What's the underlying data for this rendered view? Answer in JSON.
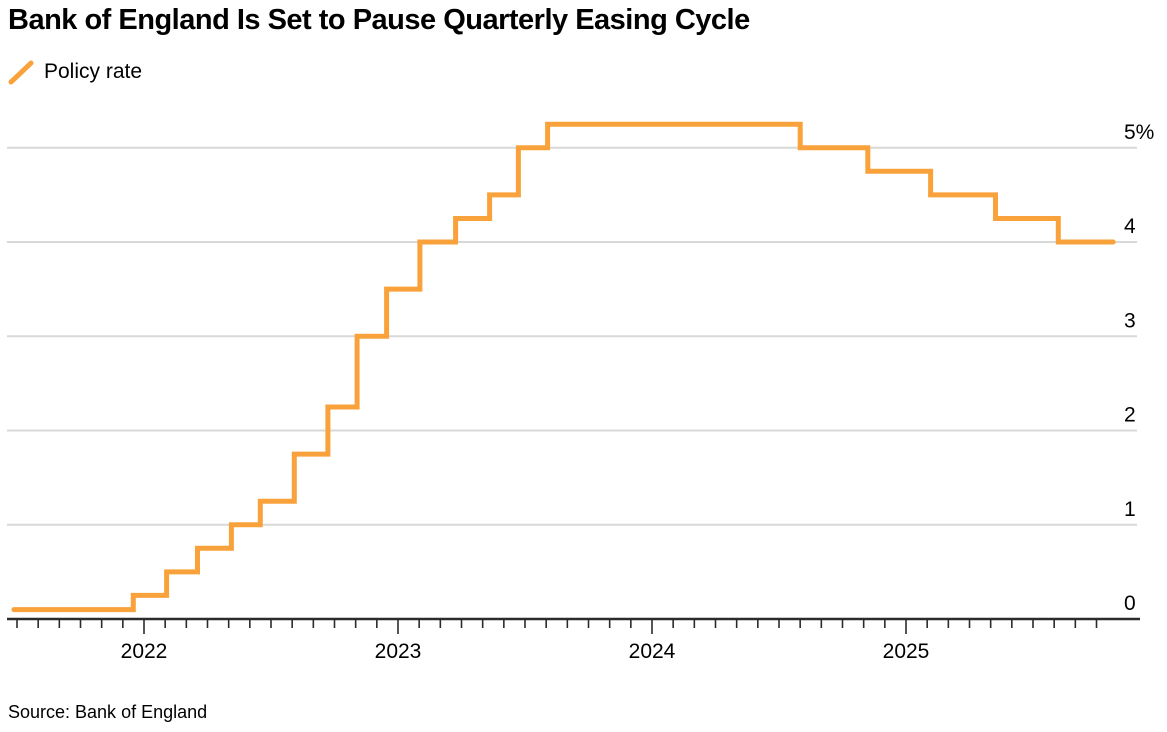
{
  "title": "Bank of England Is Set to Pause Quarterly Easing Cycle",
  "legend": {
    "label": "Policy rate"
  },
  "source": "Source: Bank of England",
  "colors": {
    "line": "#F9A23C",
    "grid": "#D8D8D8",
    "axis": "#2B2B2B",
    "text": "#000000"
  },
  "chart_data": {
    "type": "line",
    "subtype": "step",
    "title": "Bank of England Is Set to Pause Quarterly Easing Cycle",
    "ylabel": "Policy rate (%)",
    "y_axis": {
      "position": "right",
      "ticks": [
        0,
        1,
        2,
        3,
        4,
        5
      ],
      "tick_labels": [
        "0",
        "1",
        "2",
        "3",
        "4",
        "5%"
      ],
      "min": 0,
      "max": 5.25,
      "grid": true
    },
    "x_axis": {
      "start": "2021-06-27",
      "end": "2025-10-25",
      "year_ticks": [
        "2022",
        "2023",
        "2024",
        "2025"
      ],
      "minor_tick_interval": "month"
    },
    "series": [
      {
        "name": "Policy rate",
        "unit": "%",
        "steps": [
          {
            "date": "2021-06-27",
            "rate": 0.1
          },
          {
            "date": "2021-12-16",
            "rate": 0.25
          },
          {
            "date": "2022-02-03",
            "rate": 0.5
          },
          {
            "date": "2022-03-17",
            "rate": 0.75
          },
          {
            "date": "2022-05-05",
            "rate": 1.0
          },
          {
            "date": "2022-06-16",
            "rate": 1.25
          },
          {
            "date": "2022-08-04",
            "rate": 1.75
          },
          {
            "date": "2022-09-22",
            "rate": 2.25
          },
          {
            "date": "2022-11-03",
            "rate": 3.0
          },
          {
            "date": "2022-12-15",
            "rate": 3.5
          },
          {
            "date": "2023-02-02",
            "rate": 4.0
          },
          {
            "date": "2023-03-23",
            "rate": 4.25
          },
          {
            "date": "2023-05-11",
            "rate": 4.5
          },
          {
            "date": "2023-06-22",
            "rate": 5.0
          },
          {
            "date": "2023-08-03",
            "rate": 5.25
          },
          {
            "date": "2024-08-01",
            "rate": 5.0
          },
          {
            "date": "2024-11-07",
            "rate": 4.75
          },
          {
            "date": "2025-02-06",
            "rate": 4.5
          },
          {
            "date": "2025-05-08",
            "rate": 4.25
          },
          {
            "date": "2025-08-07",
            "rate": 4.0
          }
        ]
      }
    ]
  }
}
